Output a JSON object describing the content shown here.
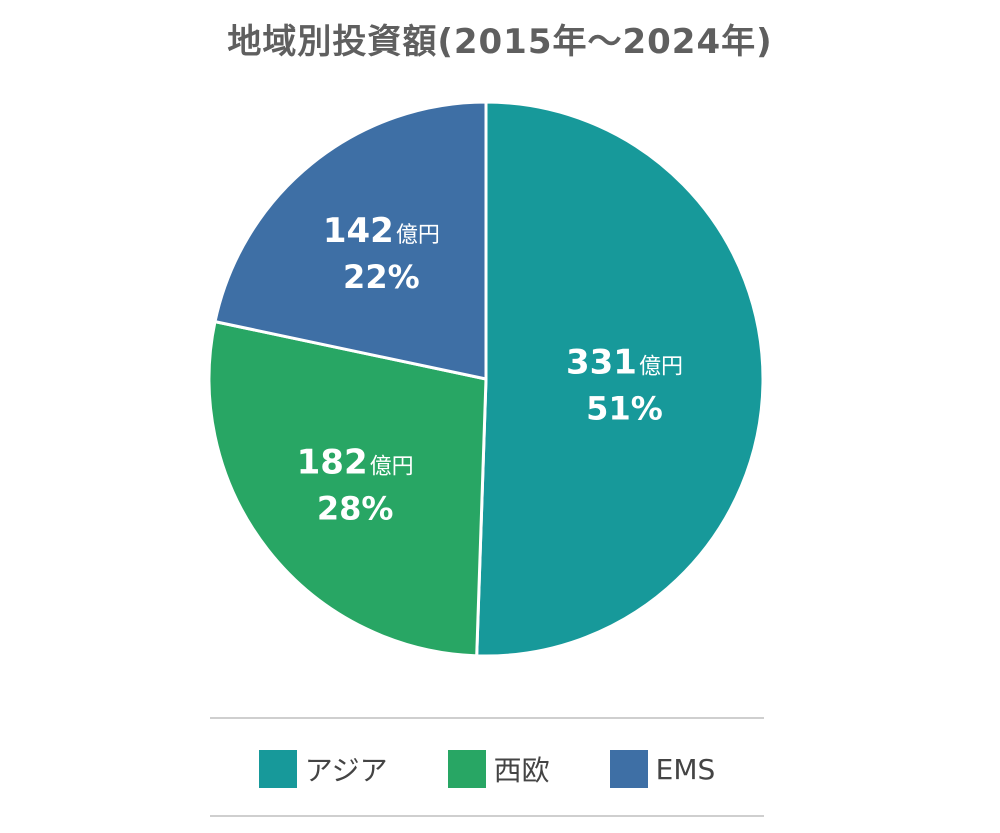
{
  "chart_data": {
    "type": "pie",
    "title": "地域別投資額(2015年～2024年)",
    "unit": "億円",
    "start": "top",
    "direction": "clockwise",
    "legend_position": "bottom",
    "slices": [
      {
        "label": "アジア",
        "value": 331,
        "percent_label": "51%",
        "color": "#17999a"
      },
      {
        "label": "西欧",
        "value": 182,
        "percent_label": "28%",
        "color": "#28a664"
      },
      {
        "label": "EMS",
        "value": 142,
        "percent_label": "22%",
        "color": "#3e6fa5"
      }
    ]
  }
}
